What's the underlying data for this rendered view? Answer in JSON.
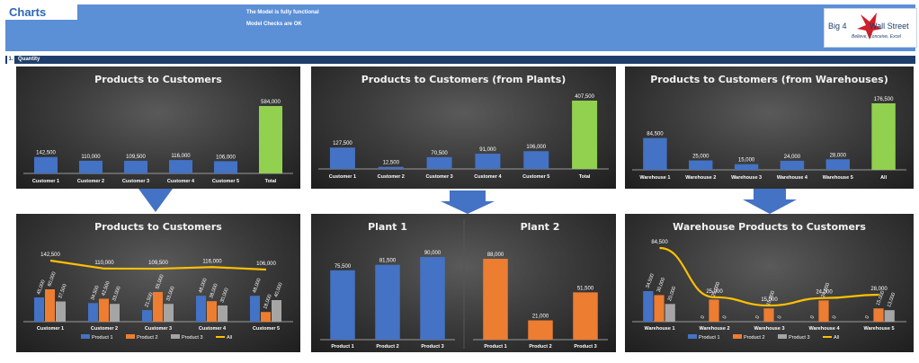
{
  "header": {
    "title": "Charts",
    "messages": [
      "The Model is fully functional",
      "Model Checks are OK"
    ],
    "logo": {
      "line1": "Big 4",
      "line2": "Wall Street",
      "tagline": "Believe, Conceive, Excel"
    }
  },
  "section": {
    "number": "1.",
    "label": "Quantity"
  },
  "colors": {
    "product1": "#4472c4",
    "product2": "#ed7d31",
    "product3": "#a5a5a5",
    "all": "#ffc000",
    "total": "#92d050",
    "header": "#5b8fd6",
    "section": "#1f3e6b"
  },
  "panels": {
    "p1": {
      "title": "Products to Customers"
    },
    "p2": {
      "title": "Products to Customers (from Plants)"
    },
    "p3": {
      "title": "Products to Customers (from Warehouses)"
    },
    "p4": {
      "title": "Products to Customers"
    },
    "p5": {
      "title_left": "Plant 1",
      "title_right": "Plant 2"
    },
    "p6": {
      "title": "Warehouse Products to Customers"
    }
  },
  "chart_data": [
    {
      "type": "bar",
      "title": "Products to Customers",
      "categories": [
        "Customer 1",
        "Customer 2",
        "Customer 3",
        "Customer 4",
        "Customer 5",
        "Total"
      ],
      "values": [
        142500,
        110000,
        109500,
        116000,
        106000,
        584000
      ],
      "labels": [
        "142,500",
        "110,000",
        "109,500",
        "116,000",
        "106,000",
        "584,000"
      ]
    },
    {
      "type": "bar",
      "title": "Products to Customers (from Plants)",
      "categories": [
        "Customer 1",
        "Customer 2",
        "Customer 3",
        "Customer 4",
        "Customer 5",
        "Total"
      ],
      "values": [
        127500,
        12500,
        70500,
        91000,
        106000,
        407500
      ],
      "labels": [
        "127,500",
        "12,500",
        "70,500",
        "91,000",
        "106,000",
        "407,500"
      ]
    },
    {
      "type": "bar",
      "title": "Products to Customers (from Warehouses)",
      "categories": [
        "Warehouse 1",
        "Warehouse 2",
        "Warehouse 3",
        "Warehouse 4",
        "Warehouse 5",
        "All"
      ],
      "values": [
        84500,
        25000,
        15000,
        24000,
        28000,
        176500
      ],
      "labels": [
        "84,500",
        "25,000",
        "15,000",
        "24,000",
        "28,000",
        "176,500"
      ]
    },
    {
      "type": "bar",
      "title": "Products to Customers",
      "categories": [
        "Customer 1",
        "Customer 2",
        "Customer 3",
        "Customer 4",
        "Customer 5"
      ],
      "series": [
        {
          "name": "Product 1",
          "values": [
            45000,
            34500,
            21500,
            48000,
            48000
          ],
          "labels": [
            "45,000",
            "34,500",
            "21,500",
            "48,000",
            "48,000"
          ]
        },
        {
          "name": "Product 2",
          "values": [
            60000,
            42500,
            55000,
            38000,
            18000
          ],
          "labels": [
            "60,000",
            "42,500",
            "55,000",
            "38,000",
            "18,000"
          ]
        },
        {
          "name": "Product 3",
          "values": [
            37500,
            33000,
            33000,
            30000,
            40000
          ],
          "labels": [
            "37,500",
            "33,000",
            "33,000",
            "30,000",
            "40,000"
          ]
        },
        {
          "name": "All",
          "type": "line",
          "values": [
            142500,
            110000,
            109500,
            116000,
            106000
          ],
          "labels": [
            "142,500",
            "110,000",
            "109,500",
            "116,000",
            "106,000"
          ]
        }
      ]
    },
    {
      "type": "bar",
      "title": "Plant 1",
      "categories": [
        "Product 1",
        "Product 2",
        "Product 3"
      ],
      "values": [
        75500,
        81500,
        90000
      ],
      "labels": [
        "75,500",
        "81,500",
        "90,000"
      ]
    },
    {
      "type": "bar",
      "title": "Plant 2",
      "categories": [
        "Product 1",
        "Product 2",
        "Product 3"
      ],
      "values": [
        88000,
        21000,
        51500
      ],
      "labels": [
        "88,000",
        "21,000",
        "51,500"
      ]
    },
    {
      "type": "bar",
      "title": "Warehouse Products to Customers",
      "categories": [
        "Warehouse 1",
        "Warehouse 2",
        "Warehouse 3",
        "Warehouse 4",
        "Warehouse 5"
      ],
      "series": [
        {
          "name": "Product 1",
          "values": [
            34500,
            0,
            0,
            0,
            0
          ],
          "labels": [
            "34,500",
            "0",
            "0",
            "0",
            "0"
          ]
        },
        {
          "name": "Product 2",
          "values": [
            30000,
            25000,
            15000,
            24000,
            15000
          ],
          "labels": [
            "30,000",
            "25,000",
            "15,000",
            "24,000",
            "15,000"
          ]
        },
        {
          "name": "Product 3",
          "values": [
            20000,
            0,
            0,
            0,
            13000
          ],
          "labels": [
            "20,000",
            "0",
            "0",
            "0",
            "13,000"
          ]
        },
        {
          "name": "All",
          "type": "line",
          "values": [
            84500,
            25000,
            15000,
            24000,
            28000
          ],
          "labels": [
            "84,500",
            "25,000",
            "15,000",
            "24,000",
            "28,000"
          ]
        }
      ]
    }
  ]
}
